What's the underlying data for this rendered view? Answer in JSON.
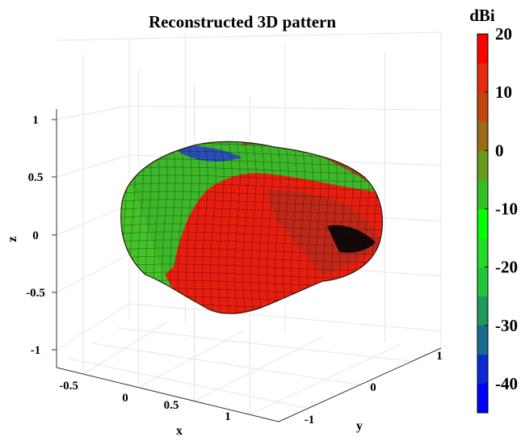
{
  "chart_data": {
    "type": "surface3d",
    "title": "Reconstructed 3D pattern",
    "xlabel": "x",
    "ylabel": "y",
    "zlabel": "z",
    "x_ticks": [
      "-0.5",
      "0",
      "0.5",
      "1"
    ],
    "y_ticks": [
      "-1",
      "0",
      "1"
    ],
    "z_ticks": [
      "1",
      "0.5",
      "0",
      "-0.5",
      "-1"
    ],
    "x_range": [
      -0.75,
      1.25
    ],
    "y_range": [
      -1.25,
      1.25
    ],
    "z_range": [
      -1.25,
      1.25
    ],
    "colorbar": {
      "unit": "dBi",
      "ticks": [
        "20",
        "10",
        "0",
        "-10",
        "-20",
        "-30",
        "-40"
      ],
      "tick_values": [
        20,
        10,
        0,
        -10,
        -20,
        -30,
        -40
      ],
      "range": [
        -45,
        20
      ],
      "levels": 13,
      "colormap": [
        "#0000ff",
        "#0a2ad2",
        "#1a6a8c",
        "#1e9a5a",
        "#22c43a",
        "#22dd28",
        "#00ff00",
        "#30c020",
        "#6a9a1a",
        "#9a6a14",
        "#c24410",
        "#e42a10",
        "#ff0000"
      ]
    },
    "grid": true
  }
}
